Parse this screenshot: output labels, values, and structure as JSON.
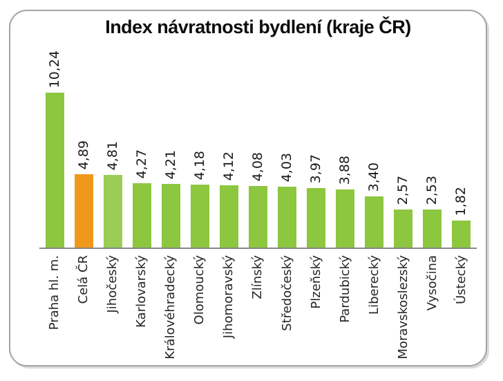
{
  "frame": {
    "border_color": "#a3a3a3",
    "shadow_color": "#dbdbdb",
    "background": "#ffffff"
  },
  "chart_data": {
    "type": "bar",
    "title": "Index návratnosti bydlení (kraje ČR)",
    "xlabel": "",
    "ylabel": "",
    "categories": [
      "Praha hl. m.",
      "Celá ČR",
      "Jihočeský",
      "Karlovarský",
      "Královéhradecký",
      "Olomoucký",
      "Jihomoravský",
      "Zlínský",
      "Středočeský",
      "Plzeňský",
      "Pardubický",
      "Liberecký",
      "Moravskoslezský",
      "Vysočina",
      "Ústecký"
    ],
    "values": [
      10.24,
      4.89,
      4.81,
      4.27,
      4.21,
      4.18,
      4.12,
      4.08,
      4.03,
      3.97,
      3.88,
      3.4,
      2.57,
      2.53,
      1.82
    ],
    "value_labels": [
      "10,24",
      "4,89",
      "4,81",
      "4,27",
      "4,21",
      "4,18",
      "4,12",
      "4,08",
      "4,03",
      "3,97",
      "3,88",
      "3,40",
      "2,57",
      "2,53",
      "1,82"
    ],
    "bar_colors": [
      "#8dc63f",
      "#f0981b",
      "#9acd56",
      "#8dc63f",
      "#8dc63f",
      "#8dc63f",
      "#8dc63f",
      "#8dc63f",
      "#8dc63f",
      "#8dc63f",
      "#8dc63f",
      "#8dc63f",
      "#8dc63f",
      "#8dc63f",
      "#8dc63f"
    ],
    "colors": {
      "default_bar": "#8dc63f",
      "highlight_bar_cela_cr": "#f0981b",
      "highlight_bar_jihocesky": "#9acd56",
      "axis": "#878787",
      "value_text": "#1a1a1a",
      "category_text": "#262626",
      "title_text": "#0d0d0d"
    },
    "ylim": [
      0,
      10.24
    ],
    "grid": false,
    "legend": false,
    "value_label_rotation_deg": 90,
    "category_label_rotation_deg": 90
  }
}
